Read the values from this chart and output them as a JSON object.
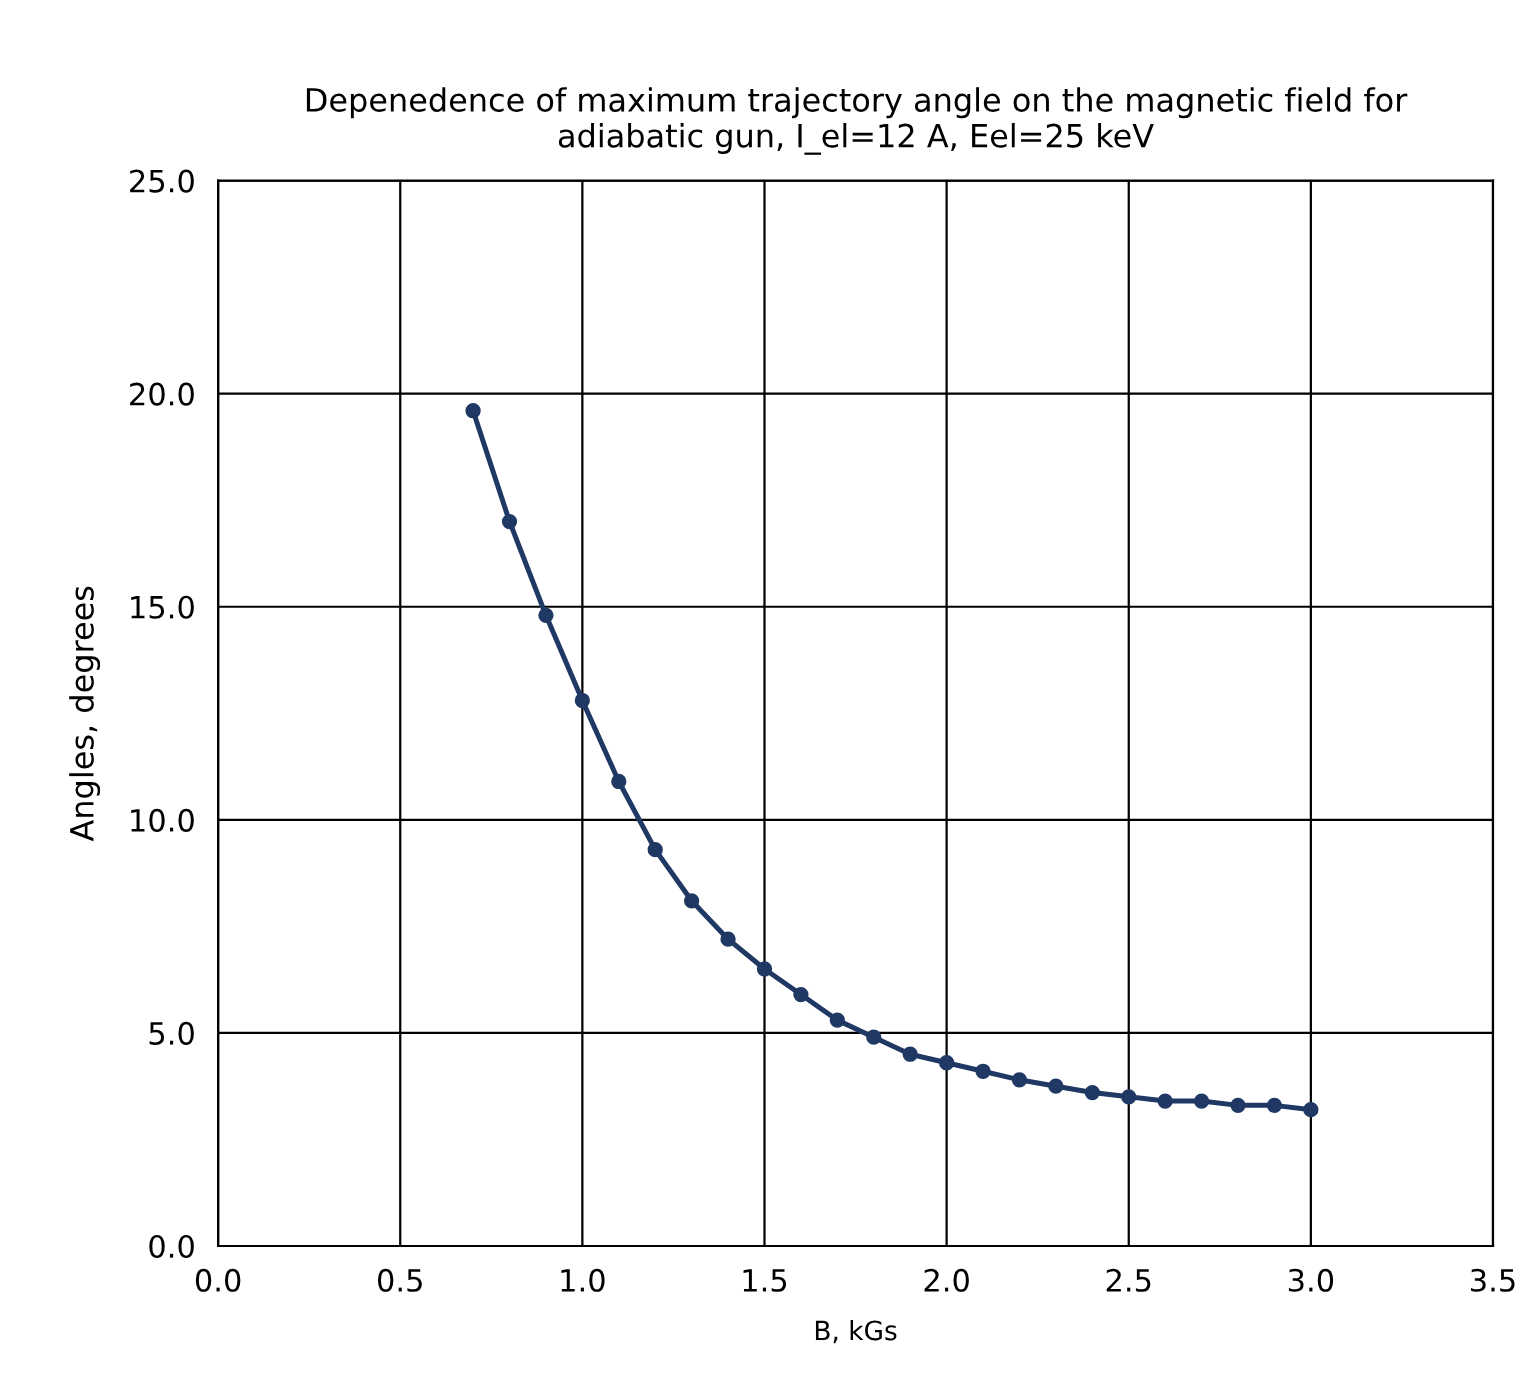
{
  "chart_data": {
    "type": "line",
    "title": "Depenedence of maximum trajectory angle on the magnetic field for\nadiabatic gun, I_el=12 A, Eel=25 keV",
    "xlabel": "B, kGs",
    "ylabel": "Angles, degrees",
    "x": [
      0.7,
      0.8,
      0.9,
      1.0,
      1.1,
      1.2,
      1.3,
      1.4,
      1.5,
      1.6,
      1.7,
      1.8,
      1.9,
      2.0,
      2.1,
      2.2,
      2.3,
      2.4,
      2.5,
      2.6,
      2.7,
      2.8,
      2.9,
      3.0
    ],
    "series": [
      {
        "color": "#203864",
        "values": [
          19.6,
          17.0,
          14.8,
          12.8,
          10.9,
          9.3,
          8.1,
          7.2,
          6.5,
          5.9,
          5.3,
          4.9,
          4.5,
          4.3,
          4.1,
          3.9,
          3.75,
          3.6,
          3.5,
          3.4,
          3.4,
          3.3,
          3.3,
          3.2
        ]
      }
    ],
    "xlim": [
      0,
      3.5
    ],
    "xticks": [
      {
        "value": 0,
        "label": "0.0"
      },
      {
        "value": 0.5,
        "label": "0.5"
      },
      {
        "value": 1,
        "label": "1.0"
      },
      {
        "value": 1.5,
        "label": "1.5"
      },
      {
        "value": 2,
        "label": "2.0"
      },
      {
        "value": 2.5,
        "label": "2.5"
      },
      {
        "value": 3,
        "label": "3.0"
      },
      {
        "value": 3.5,
        "label": "3.5"
      }
    ],
    "ylim": [
      0,
      25
    ],
    "yticks": [
      {
        "value": 0,
        "label": "0.0"
      },
      {
        "value": 5,
        "label": "5.0"
      },
      {
        "value": 10,
        "label": "10.0"
      },
      {
        "value": 15,
        "label": "15.0"
      },
      {
        "value": 20,
        "label": "20.0"
      },
      {
        "value": 25,
        "label": "25.0"
      }
    ],
    "grid": true,
    "marker": "circle",
    "line_style": "solid"
  }
}
